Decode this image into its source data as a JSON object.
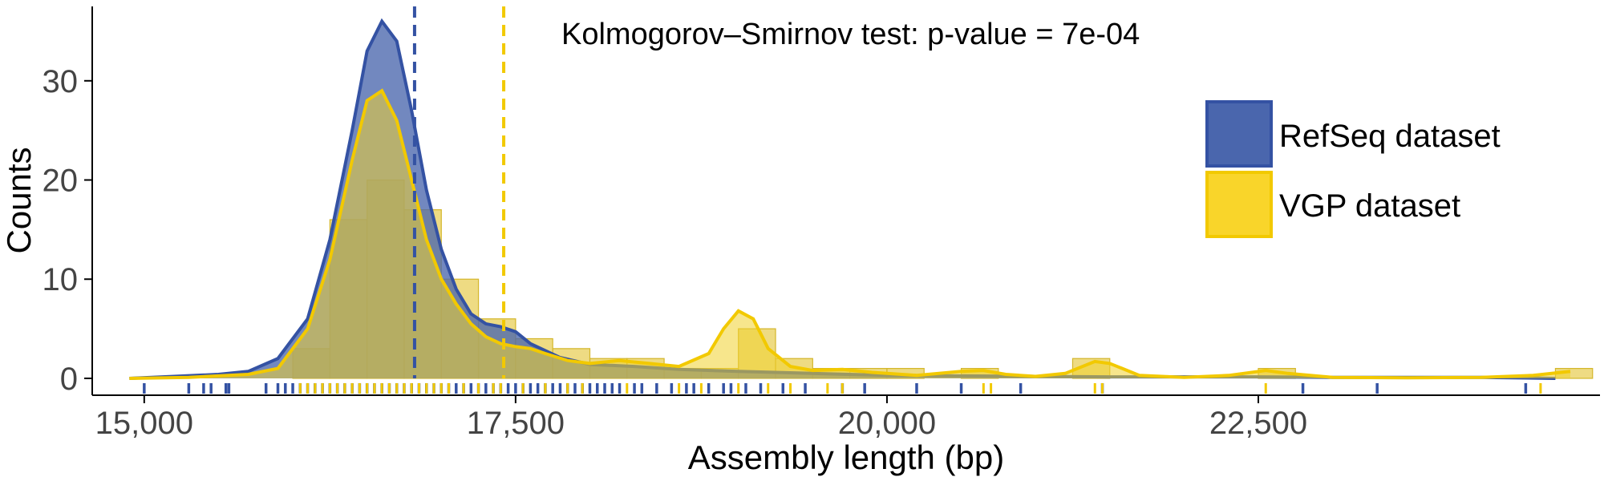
{
  "chart_data": {
    "type": "histogram_density",
    "xlabel": "Assembly length (bp)",
    "ylabel": "Counts",
    "xlim": [
      14650,
      24800
    ],
    "ylim": [
      -1.7,
      37.5
    ],
    "x_ticks": [
      15000,
      17500,
      20000,
      22500
    ],
    "x_tick_labels": [
      "15,000",
      "17,500",
      "20,000",
      "22,500"
    ],
    "y_ticks": [
      0,
      10,
      20,
      30
    ],
    "y_tick_labels": [
      "0",
      "10",
      "20",
      "30"
    ],
    "annotation": "Kolmogorov–Smirnov test: p-value = 7e-04",
    "legend_position": "right",
    "grid": false,
    "bin_width": 250,
    "series": [
      {
        "name": "RefSeq dataset",
        "color": "#3452a3",
        "fill": "#4a66ad",
        "mean_line_x": 16820,
        "density_curve": [
          [
            14900,
            0
          ],
          [
            15200,
            0.2
          ],
          [
            15500,
            0.4
          ],
          [
            15700,
            0.7
          ],
          [
            15900,
            2
          ],
          [
            16100,
            6
          ],
          [
            16250,
            14
          ],
          [
            16400,
            25
          ],
          [
            16500,
            33
          ],
          [
            16600,
            36
          ],
          [
            16700,
            34
          ],
          [
            16800,
            27
          ],
          [
            16900,
            19
          ],
          [
            17000,
            13
          ],
          [
            17100,
            9
          ],
          [
            17200,
            6.5
          ],
          [
            17300,
            5.5
          ],
          [
            17400,
            5.2
          ],
          [
            17500,
            4.7
          ],
          [
            17600,
            3.5
          ],
          [
            17800,
            2.1
          ],
          [
            18000,
            1.4
          ],
          [
            18300,
            1.2
          ],
          [
            18600,
            0.9
          ],
          [
            19000,
            0.7
          ],
          [
            19500,
            0.5
          ],
          [
            20000,
            0.3
          ],
          [
            20500,
            0.25
          ],
          [
            21000,
            0.2
          ],
          [
            21500,
            0.15
          ],
          [
            22000,
            0.15
          ],
          [
            22500,
            0.15
          ],
          [
            23000,
            0.1
          ],
          [
            23500,
            0.1
          ],
          [
            24000,
            0.1
          ],
          [
            24500,
            0
          ]
        ],
        "rug_x": [
          15000,
          15300,
          15400,
          15450,
          15550,
          15570,
          15820,
          15900,
          15950,
          16000,
          16050,
          16100,
          16150,
          16200,
          16250,
          16300,
          16350,
          16400,
          16450,
          16500,
          16550,
          16600,
          16650,
          16700,
          16750,
          16800,
          16850,
          16900,
          16950,
          17000,
          17050,
          17100,
          17150,
          17200,
          17250,
          17300,
          17350,
          17400,
          17450,
          17500,
          17550,
          17600,
          17650,
          17700,
          17750,
          17800,
          17850,
          17900,
          17950,
          18000,
          18050,
          18100,
          18150,
          18200,
          18300,
          18350,
          18450,
          18550,
          18650,
          18700,
          18800,
          18900,
          18950,
          19050,
          19150,
          19300,
          19450,
          19700,
          19850,
          20200,
          20500,
          20900,
          21450,
          22800,
          23300,
          24300
        ]
      },
      {
        "name": "VGP dataset",
        "color": "#f2c900",
        "fill": "#f5d84a",
        "mean_line_x": 17420,
        "density_curve": [
          [
            14900,
            0
          ],
          [
            15300,
            0.1
          ],
          [
            15700,
            0.4
          ],
          [
            15900,
            1
          ],
          [
            16100,
            5
          ],
          [
            16250,
            12
          ],
          [
            16400,
            22
          ],
          [
            16500,
            28
          ],
          [
            16600,
            29
          ],
          [
            16700,
            26
          ],
          [
            16800,
            20
          ],
          [
            16900,
            14
          ],
          [
            17000,
            10
          ],
          [
            17100,
            7.5
          ],
          [
            17200,
            5.5
          ],
          [
            17300,
            4.2
          ],
          [
            17400,
            3.5
          ],
          [
            17500,
            3.2
          ],
          [
            17600,
            3
          ],
          [
            17700,
            2.5
          ],
          [
            17850,
            1.8
          ],
          [
            18000,
            1.5
          ],
          [
            18200,
            1.8
          ],
          [
            18400,
            1.5
          ],
          [
            18600,
            1.2
          ],
          [
            18800,
            2.5
          ],
          [
            18900,
            5
          ],
          [
            19000,
            6.8
          ],
          [
            19100,
            6
          ],
          [
            19200,
            3
          ],
          [
            19350,
            1.2
          ],
          [
            19500,
            0.8
          ],
          [
            19700,
            0.9
          ],
          [
            19900,
            0.6
          ],
          [
            20200,
            0.3
          ],
          [
            20500,
            0.7
          ],
          [
            20650,
            0.8
          ],
          [
            20800,
            0.4
          ],
          [
            21000,
            0.2
          ],
          [
            21200,
            0.5
          ],
          [
            21400,
            1.7
          ],
          [
            21500,
            1.5
          ],
          [
            21700,
            0.3
          ],
          [
            22000,
            0.1
          ],
          [
            22300,
            0.3
          ],
          [
            22550,
            0.8
          ],
          [
            22700,
            0.5
          ],
          [
            23000,
            0.1
          ],
          [
            23500,
            0.05
          ],
          [
            24000,
            0.1
          ],
          [
            24350,
            0.3
          ],
          [
            24600,
            0.7
          ]
        ],
        "histogram": {
          "bin_starts": [
            16000,
            16250,
            16500,
            16750,
            17000,
            17250,
            17500,
            17750,
            18000,
            18250,
            18500,
            18750,
            19000,
            19250,
            19500,
            19750,
            20000,
            20250,
            20500,
            20750,
            21000,
            21250,
            21500,
            21750,
            22000,
            22250,
            22500,
            22750,
            23000,
            23250,
            23500,
            23750,
            24000,
            24250,
            24500
          ],
          "counts": [
            3,
            16,
            20,
            17,
            10,
            6,
            4,
            3,
            2,
            2,
            1,
            1,
            5,
            2,
            1,
            1,
            1,
            0,
            1,
            0,
            0,
            2,
            0,
            0,
            0,
            0,
            1,
            0,
            0,
            0,
            0,
            0,
            0,
            0,
            1
          ]
        },
        "rug_x": [
          16050,
          16100,
          16150,
          16200,
          16250,
          16300,
          16350,
          16400,
          16450,
          16500,
          16550,
          16600,
          16650,
          16700,
          16750,
          16800,
          16850,
          16900,
          16950,
          17000,
          17050,
          17150,
          17250,
          17350,
          17400,
          17550,
          17700,
          17850,
          17950,
          18250,
          18600,
          18750,
          19000,
          19200,
          19350,
          19600,
          19700,
          20650,
          20700,
          21400,
          21450,
          22550,
          24400
        ]
      }
    ]
  }
}
